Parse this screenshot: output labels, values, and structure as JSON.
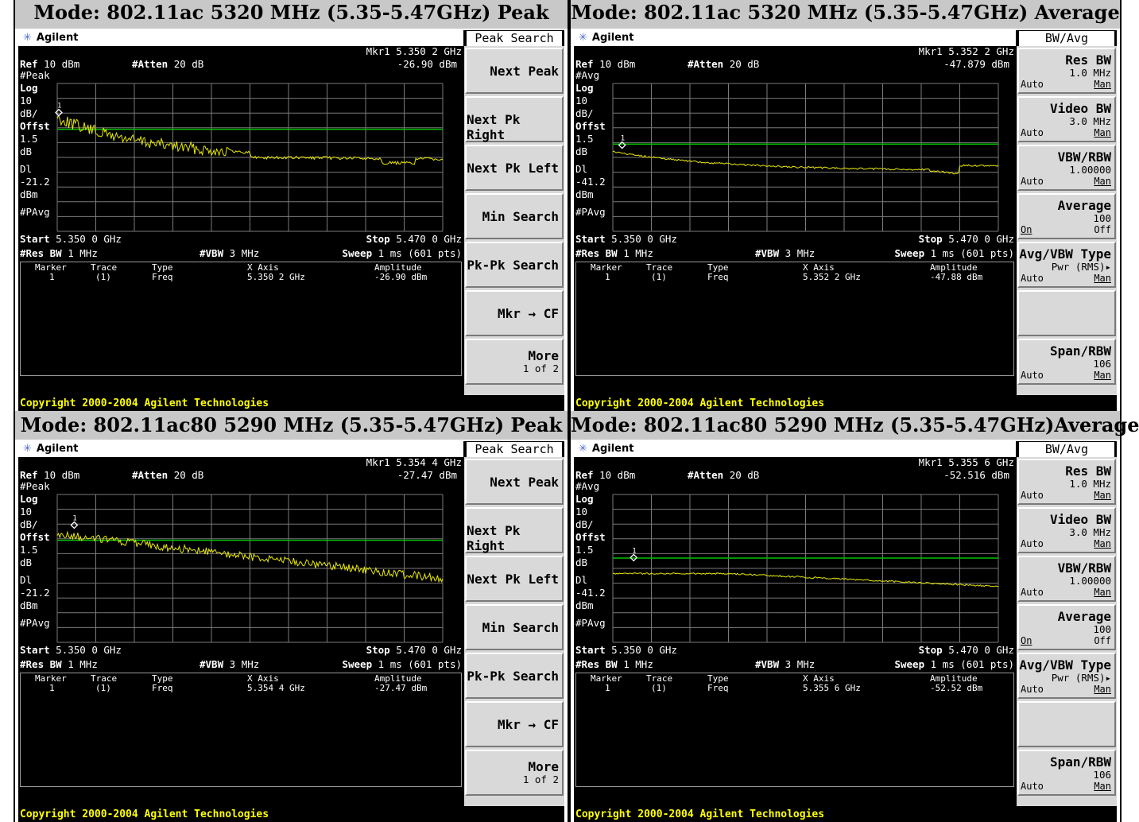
{
  "panels": [
    {
      "title": "Mode: 802.11ac 5320 MHz (5.35-5.47GHz) Peak",
      "brand": "Agilent",
      "menu_title": "Peak Search",
      "mkr_label": "Mkr1",
      "mkr_freq": "5.350 2 GHz",
      "mkr_amp": "-26.90 dBm",
      "ref": "10 dBm",
      "atten": "20 dB",
      "detector": "#Peak",
      "scale": [
        "Log",
        "10",
        "dB/",
        "Offst",
        "1.5",
        "dB",
        "Dl",
        "-21.2",
        "dBm",
        "#PAvg"
      ],
      "start": "5.350 0 GHz",
      "stop": "5.470 0 GHz",
      "res_bw": "1 MHz",
      "vbw": "3 MHz",
      "sweep": "1 ms (601 pts)",
      "table_headers": [
        "Marker",
        "Trace",
        "Type",
        "X Axis",
        "Amplitude"
      ],
      "table_row": [
        "1",
        "(1)",
        "Freq",
        "5.350 2 GHz",
        "-26.90 dBm"
      ],
      "softkeys": [
        {
          "label": "Next Peak"
        },
        {
          "label": "Next Pk Right"
        },
        {
          "label": "Next Pk Left"
        },
        {
          "label": "Min Search"
        },
        {
          "label": "Pk-Pk Search"
        },
        {
          "label": "Mkr → CF"
        },
        {
          "label": "More",
          "sub": "1 of 2"
        }
      ],
      "copyright": "Copyright 2000-2004 Agilent Technologies",
      "display_line_level": 0.52,
      "trace": "peak1",
      "trace_color": "#e8e800"
    },
    {
      "title": "Mode: 802.11ac 5320 MHz (5.35-5.47GHz) Average",
      "brand": "Agilent",
      "menu_title": "BW/Avg",
      "mkr_label": "Mkr1",
      "mkr_freq": "5.352 2 GHz",
      "mkr_amp": "-47.879 dBm",
      "ref": "10 dBm",
      "atten": "20 dB",
      "detector": "#Avg",
      "scale": [
        "Log",
        "10",
        "dB/",
        "Offst",
        "1.5",
        "dB",
        "Dl",
        "-41.2",
        "dBm",
        "#PAvg"
      ],
      "start": "5.350 0 GHz",
      "stop": "5.470 0 GHz",
      "res_bw": "1 MHz",
      "vbw": "3 MHz",
      "sweep": "1 ms (601 pts)",
      "table_headers": [
        "Marker",
        "Trace",
        "Type",
        "X Axis",
        "Amplitude"
      ],
      "table_row": [
        "1",
        "(1)",
        "Freq",
        "5.352 2 GHz",
        "-47.88 dBm"
      ],
      "softkeys": [
        {
          "label": "Res BW",
          "sub": "1.0 MHz",
          "auto": "Auto",
          "man": "Man"
        },
        {
          "label": "Video BW",
          "sub": "3.0 MHz",
          "auto": "Auto",
          "man": "Man"
        },
        {
          "label": "VBW/RBW",
          "sub": "1.00000",
          "auto": "Auto",
          "man": "Man"
        },
        {
          "label": "Average",
          "sub": "100",
          "on": "On",
          "off": "Off"
        },
        {
          "label": "Avg/VBW Type",
          "sub": "Pwr (RMS)▸",
          "auto": "Auto",
          "man": "Man"
        },
        {
          "label": ""
        },
        {
          "label": "Span/RBW",
          "sub": "106",
          "auto": "Auto",
          "man": "Man"
        }
      ],
      "copyright": "Copyright 2000-2004 Agilent Technologies",
      "trace": "avg1"
    },
    {
      "title": "Mode: 802.11ac80 5290 MHz (5.35-5.47GHz) Peak",
      "brand": "Agilent",
      "menu_title": "Peak Search",
      "mkr_label": "Mkr1",
      "mkr_freq": "5.354 4 GHz",
      "mkr_amp": "-27.47 dBm",
      "ref": "10 dBm",
      "atten": "20 dB",
      "detector": "#Peak",
      "scale": [
        "Log",
        "10",
        "dB/",
        "Offst",
        "1.5",
        "dB",
        "Dl",
        "-21.2",
        "dBm",
        "#PAvg"
      ],
      "start": "5.350 0 GHz",
      "stop": "5.470 0 GHz",
      "res_bw": "1 MHz",
      "vbw": "3 MHz",
      "sweep": "1 ms (601 pts)",
      "table_headers": [
        "Marker",
        "Trace",
        "Type",
        "X Axis",
        "Amplitude"
      ],
      "table_row": [
        "1",
        "(1)",
        "Freq",
        "5.354 4 GHz",
        "-27.47 dBm"
      ],
      "softkeys": [
        {
          "label": "Next Peak"
        },
        {
          "label": "Next Pk Right"
        },
        {
          "label": "Next Pk Left"
        },
        {
          "label": "Min Search"
        },
        {
          "label": "Pk-Pk Search"
        },
        {
          "label": "Mkr → CF"
        },
        {
          "label": "More",
          "sub": "1 of 2"
        }
      ],
      "copyright": "Copyright 2000-2004 Agilent Technologies",
      "trace": "peak2"
    },
    {
      "title": "Mode: 802.11ac80 5290 MHz (5.35-5.47GHz)Average",
      "brand": "Agilent",
      "menu_title": "BW/Avg",
      "mkr_label": "Mkr1",
      "mkr_freq": "5.355 6 GHz",
      "mkr_amp": "-52.516 dBm",
      "ref": "10 dBm",
      "atten": "20 dB",
      "detector": "#Avg",
      "scale": [
        "Log",
        "10",
        "dB/",
        "Offst",
        "1.5",
        "dB",
        "Dl",
        "-41.2",
        "dBm",
        "#PAvg"
      ],
      "start": "5.350 0 GHz",
      "stop": "5.470 0 GHz",
      "res_bw": "1 MHz",
      "vbw": "3 MHz",
      "sweep": "1 ms (601 pts)",
      "table_headers": [
        "Marker",
        "Trace",
        "Type",
        "X Axis",
        "Amplitude"
      ],
      "table_row": [
        "1",
        "(1)",
        "Freq",
        "5.355 6 GHz",
        "-52.52 dBm"
      ],
      "softkeys": [
        {
          "label": "Res BW",
          "sub": "1.0 MHz",
          "auto": "Auto",
          "man": "Man"
        },
        {
          "label": "Video BW",
          "sub": "3.0 MHz",
          "auto": "Auto",
          "man": "Man"
        },
        {
          "label": "VBW/RBW",
          "sub": "1.00000",
          "auto": "Auto",
          "man": "Man"
        },
        {
          "label": "Average",
          "sub": "100",
          "on": "On",
          "off": "Off"
        },
        {
          "label": "Avg/VBW Type",
          "sub": "Pwr (RMS)▸",
          "auto": "Auto",
          "man": "Man"
        },
        {
          "label": ""
        },
        {
          "label": "Span/RBW",
          "sub": "106",
          "auto": "Auto",
          "man": "Man"
        }
      ],
      "copyright": "Copyright 2000-2004 Agilent Technologies",
      "trace": "avg2"
    }
  ],
  "colors": {
    "trace": "#e8e800",
    "display_line": "#00c000",
    "graticule": "#7a7a7a",
    "copyright_text": "#ffff00",
    "softkey_bg": "#d9d9d9",
    "title_bar": "#c8c8c8"
  },
  "icons": {
    "brand_logo": "agilent-starburst-icon",
    "marker": "diamond-marker-icon"
  }
}
